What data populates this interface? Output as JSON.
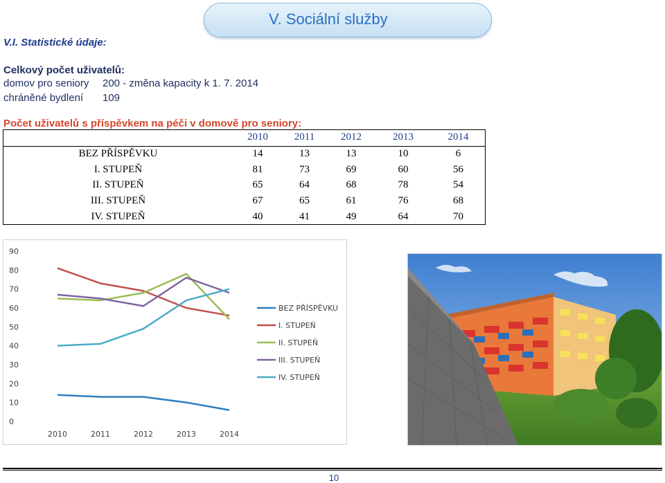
{
  "header": {
    "title": "V. Sociální služby"
  },
  "section": {
    "title": "V.I. Statistické údaje:"
  },
  "totals": {
    "title": "Celkový počet uživatelů:",
    "rows": [
      {
        "label": "domov pro seniory",
        "value": "200 - změna kapacity k 1. 7. 2014"
      },
      {
        "label": "chráněné bydlení",
        "value": "109"
      }
    ]
  },
  "table": {
    "title": "Počet uživatelů s příspěvkem na péči v domově pro seniory:",
    "years": [
      "2010",
      "2011",
      "2012",
      "2013",
      "2014"
    ],
    "rows": [
      {
        "label": "BEZ PŘÍSPĚVKU",
        "values": [
          "14",
          "13",
          "13",
          "10",
          "6"
        ]
      },
      {
        "label": "I. STUPEŇ",
        "values": [
          "81",
          "73",
          "69",
          "60",
          "56"
        ]
      },
      {
        "label": "II. STUPEŇ",
        "values": [
          "65",
          "64",
          "68",
          "78",
          "54"
        ]
      },
      {
        "label": "III. STUPEŇ",
        "values": [
          "67",
          "65",
          "61",
          "76",
          "68"
        ]
      },
      {
        "label": "IV. STUPEŇ",
        "values": [
          "40",
          "41",
          "49",
          "64",
          "70"
        ]
      }
    ]
  },
  "chart_data": {
    "type": "line",
    "categories": [
      "2010",
      "2011",
      "2012",
      "2013",
      "2014"
    ],
    "ylim": [
      0,
      90
    ],
    "yticks": [
      "0",
      "10",
      "20",
      "30",
      "40",
      "50",
      "60",
      "70",
      "80",
      "90"
    ],
    "grid": false,
    "legend_position": "right",
    "series": [
      {
        "name": "BEZ PŘÍSPĚVKU",
        "color": "#2e7ec1",
        "values": [
          14,
          13,
          13,
          10,
          6
        ]
      },
      {
        "name": "I. STUPEŇ",
        "color": "#c0504d",
        "values": [
          81,
          73,
          69,
          60,
          56
        ]
      },
      {
        "name": "II. STUPEŇ",
        "color": "#9bbb59",
        "values": [
          65,
          64,
          68,
          78,
          54
        ]
      },
      {
        "name": "III. STUPEŇ",
        "color": "#8064a2",
        "values": [
          67,
          65,
          61,
          76,
          68
        ]
      },
      {
        "name": "IV. STUPEŇ",
        "color": "#4bacc6",
        "values": [
          40,
          41,
          49,
          64,
          70
        ]
      }
    ]
  },
  "photo": {
    "description_icon": "building-photo"
  },
  "footer": {
    "page_number": "10"
  }
}
